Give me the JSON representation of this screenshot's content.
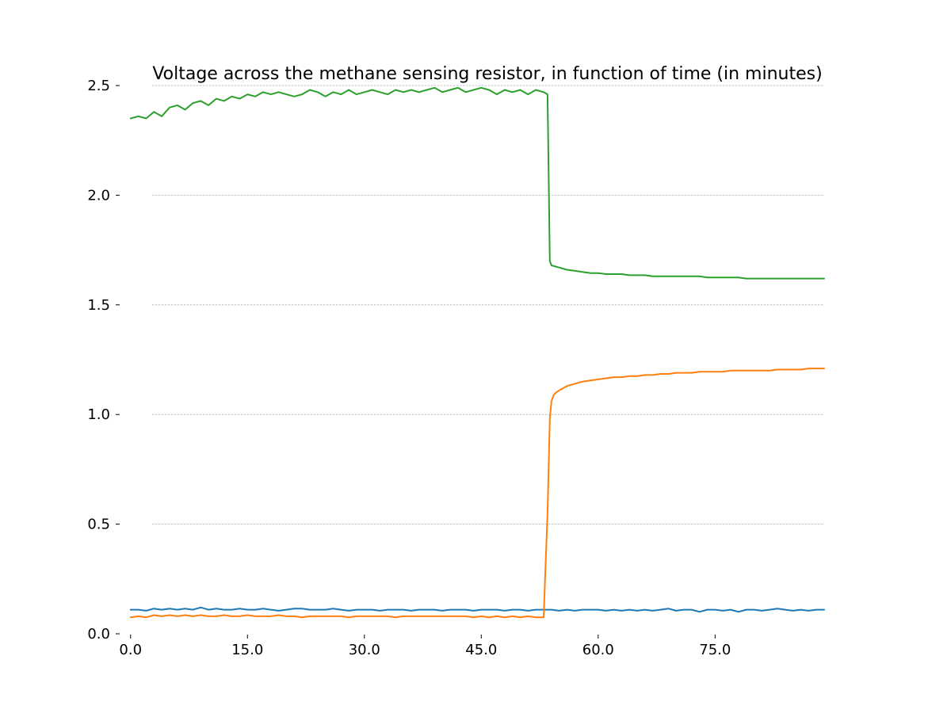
{
  "chart_data": {
    "type": "line",
    "title": "Voltage across the methane sensing resistor, in function of time (in minutes)",
    "xlabel": "",
    "ylabel": "",
    "xlim": [
      -1.5,
      89
    ],
    "ylim": [
      0,
      2.5
    ],
    "x_ticks": [
      0,
      15,
      30,
      45,
      60,
      75
    ],
    "x_tick_labels": [
      "0.0",
      "15.0",
      "30.0",
      "45.0",
      "60.0",
      "75.0"
    ],
    "y_ticks": [
      0,
      0.5,
      1,
      1.5,
      2,
      2.5
    ],
    "y_tick_labels": [
      "0.0",
      "0.5",
      "1.0",
      "1.5",
      "2.0",
      "2.5"
    ],
    "grid": "y-dashed",
    "legend": "none",
    "series": [
      {
        "color": "#1f77b4",
        "x": [
          0,
          1,
          2,
          3,
          4,
          5,
          6,
          7,
          8,
          9,
          10,
          11,
          12,
          13,
          14,
          15,
          16,
          17,
          18,
          19,
          20,
          21,
          22,
          23,
          24,
          25,
          26,
          27,
          28,
          29,
          30,
          31,
          32,
          33,
          34,
          35,
          36,
          37,
          38,
          39,
          40,
          41,
          42,
          43,
          44,
          45,
          46,
          47,
          48,
          49,
          50,
          51,
          52,
          53,
          54,
          55,
          56,
          57,
          58,
          59,
          60,
          61,
          62,
          63,
          64,
          65,
          66,
          67,
          68,
          69,
          70,
          71,
          72,
          73,
          74,
          75,
          76,
          77,
          78,
          79,
          80,
          81,
          82,
          83,
          84,
          85,
          86,
          87,
          88,
          89
        ],
        "y": [
          0.11,
          0.11,
          0.105,
          0.115,
          0.11,
          0.115,
          0.11,
          0.115,
          0.11,
          0.12,
          0.11,
          0.115,
          0.11,
          0.11,
          0.115,
          0.11,
          0.11,
          0.115,
          0.11,
          0.105,
          0.11,
          0.115,
          0.115,
          0.11,
          0.11,
          0.11,
          0.115,
          0.11,
          0.105,
          0.11,
          0.11,
          0.11,
          0.105,
          0.11,
          0.11,
          0.11,
          0.105,
          0.11,
          0.11,
          0.11,
          0.105,
          0.11,
          0.11,
          0.11,
          0.105,
          0.11,
          0.11,
          0.11,
          0.105,
          0.11,
          0.11,
          0.105,
          0.11,
          0.11,
          0.11,
          0.105,
          0.11,
          0.105,
          0.11,
          0.11,
          0.11,
          0.105,
          0.11,
          0.105,
          0.11,
          0.105,
          0.11,
          0.105,
          0.11,
          0.115,
          0.105,
          0.11,
          0.11,
          0.1,
          0.11,
          0.11,
          0.105,
          0.11,
          0.1,
          0.11,
          0.11,
          0.105,
          0.11,
          0.115,
          0.11,
          0.105,
          0.11,
          0.105,
          0.11,
          0.11
        ]
      },
      {
        "color": "#ff7f0e",
        "x": [
          0,
          1,
          2,
          3,
          4,
          5,
          6,
          7,
          8,
          9,
          10,
          11,
          12,
          13,
          14,
          15,
          16,
          17,
          18,
          19,
          20,
          21,
          22,
          23,
          24,
          25,
          26,
          27,
          28,
          29,
          30,
          31,
          32,
          33,
          34,
          35,
          36,
          37,
          38,
          39,
          40,
          41,
          42,
          43,
          44,
          45,
          46,
          47,
          48,
          49,
          50,
          51,
          52,
          53,
          53.5,
          53.8,
          54,
          54.3,
          54.6,
          55,
          55.5,
          56,
          57,
          58,
          59,
          60,
          61,
          62,
          63,
          64,
          65,
          66,
          67,
          68,
          69,
          70,
          71,
          72,
          73,
          74,
          75,
          76,
          77,
          78,
          79,
          80,
          81,
          82,
          83,
          84,
          85,
          86,
          87,
          88,
          89
        ],
        "y": [
          0.075,
          0.08,
          0.075,
          0.085,
          0.08,
          0.085,
          0.08,
          0.085,
          0.08,
          0.085,
          0.08,
          0.08,
          0.085,
          0.08,
          0.08,
          0.085,
          0.08,
          0.08,
          0.08,
          0.085,
          0.08,
          0.08,
          0.075,
          0.08,
          0.08,
          0.08,
          0.08,
          0.08,
          0.075,
          0.08,
          0.08,
          0.08,
          0.08,
          0.08,
          0.075,
          0.08,
          0.08,
          0.08,
          0.08,
          0.08,
          0.08,
          0.08,
          0.08,
          0.08,
          0.075,
          0.08,
          0.075,
          0.08,
          0.075,
          0.08,
          0.075,
          0.08,
          0.075,
          0.075,
          0.55,
          0.98,
          1.06,
          1.09,
          1.1,
          1.11,
          1.12,
          1.13,
          1.14,
          1.15,
          1.155,
          1.16,
          1.165,
          1.17,
          1.17,
          1.175,
          1.175,
          1.18,
          1.18,
          1.185,
          1.185,
          1.19,
          1.19,
          1.19,
          1.195,
          1.195,
          1.195,
          1.195,
          1.2,
          1.2,
          1.2,
          1.2,
          1.2,
          1.2,
          1.205,
          1.205,
          1.205,
          1.205,
          1.21,
          1.21,
          1.21
        ]
      },
      {
        "color": "#2ca02c",
        "x": [
          0,
          1,
          2,
          3,
          4,
          5,
          6,
          7,
          8,
          9,
          10,
          11,
          12,
          13,
          14,
          15,
          16,
          17,
          18,
          19,
          20,
          21,
          22,
          23,
          24,
          25,
          26,
          27,
          28,
          29,
          30,
          31,
          32,
          33,
          34,
          35,
          36,
          37,
          38,
          39,
          40,
          41,
          42,
          43,
          44,
          45,
          46,
          47,
          48,
          49,
          50,
          51,
          52,
          53,
          53.5,
          53.8,
          54,
          55,
          56,
          57,
          58,
          59,
          60,
          61,
          62,
          63,
          64,
          65,
          66,
          67,
          68,
          69,
          70,
          71,
          72,
          73,
          74,
          75,
          76,
          77,
          78,
          79,
          80,
          81,
          82,
          83,
          84,
          85,
          86,
          87,
          88,
          89
        ],
        "y": [
          2.35,
          2.36,
          2.35,
          2.38,
          2.36,
          2.4,
          2.41,
          2.39,
          2.42,
          2.43,
          2.41,
          2.44,
          2.43,
          2.45,
          2.44,
          2.46,
          2.45,
          2.47,
          2.46,
          2.47,
          2.46,
          2.45,
          2.46,
          2.48,
          2.47,
          2.45,
          2.47,
          2.46,
          2.48,
          2.46,
          2.47,
          2.48,
          2.47,
          2.46,
          2.48,
          2.47,
          2.48,
          2.47,
          2.48,
          2.49,
          2.47,
          2.48,
          2.49,
          2.47,
          2.48,
          2.49,
          2.48,
          2.46,
          2.48,
          2.47,
          2.48,
          2.46,
          2.48,
          2.47,
          2.46,
          1.7,
          1.68,
          1.67,
          1.66,
          1.655,
          1.65,
          1.645,
          1.645,
          1.64,
          1.64,
          1.64,
          1.635,
          1.635,
          1.635,
          1.63,
          1.63,
          1.63,
          1.63,
          1.63,
          1.63,
          1.63,
          1.625,
          1.625,
          1.625,
          1.625,
          1.625,
          1.62,
          1.62,
          1.62,
          1.62,
          1.62,
          1.62,
          1.62,
          1.62,
          1.62,
          1.62,
          1.62
        ]
      }
    ]
  }
}
